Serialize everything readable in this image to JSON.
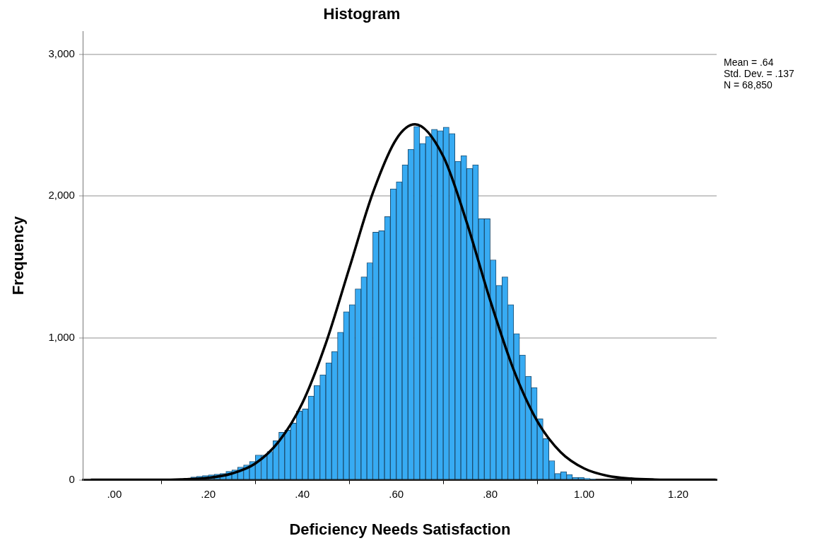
{
  "chart_data": {
    "type": "histogram",
    "title": "Histogram",
    "xlabel": "Deficiency Needs Satisfaction",
    "ylabel": "Frequency",
    "bins": [
      0.1625,
      0.175,
      0.1875,
      0.2,
      0.2125,
      0.225,
      0.2375,
      0.25,
      0.2625,
      0.275,
      0.2875,
      0.3,
      0.3125,
      0.325,
      0.3375,
      0.35,
      0.3625,
      0.375,
      0.3875,
      0.4,
      0.4125,
      0.425,
      0.4375,
      0.45,
      0.4625,
      0.475,
      0.4875,
      0.5,
      0.5125,
      0.525,
      0.5375,
      0.55,
      0.5625,
      0.575,
      0.5875,
      0.6,
      0.6125,
      0.625,
      0.6375,
      0.65,
      0.6625,
      0.675,
      0.6875,
      0.7,
      0.7125,
      0.725,
      0.7375,
      0.75,
      0.7625,
      0.775,
      0.7875,
      0.8,
      0.8125,
      0.825,
      0.8375,
      0.85,
      0.8625,
      0.875,
      0.8875,
      0.9,
      0.9125,
      0.925,
      0.9375,
      0.95,
      0.9625,
      0.975,
      0.9875,
      1.0,
      1.0125,
      1.025
    ],
    "values": [
      20,
      25,
      30,
      35,
      40,
      45,
      60,
      70,
      90,
      105,
      130,
      175,
      175,
      200,
      275,
      335,
      350,
      400,
      485,
      500,
      590,
      665,
      740,
      825,
      905,
      1040,
      1185,
      1235,
      1345,
      1430,
      1530,
      1745,
      1755,
      1855,
      2050,
      2100,
      2220,
      2330,
      2490,
      2370,
      2420,
      2470,
      2460,
      2485,
      2440,
      2245,
      2285,
      2195,
      2220,
      1840,
      1840,
      1550,
      1370,
      1430,
      1235,
      1030,
      880,
      730,
      650,
      430,
      290,
      135,
      45,
      58,
      37,
      18,
      18,
      10,
      5
    ],
    "color": "#37abf3",
    "series": [
      {
        "type": "line",
        "color": "#000000",
        "x": [
          -0.05,
          0.1,
          0.15,
          0.2,
          0.25,
          0.3,
          0.35,
          0.4,
          0.45,
          0.5,
          0.55,
          0.6,
          0.64,
          0.7,
          0.75,
          0.8,
          0.85,
          0.9,
          0.95,
          1.0,
          1.05,
          1.1,
          1.15,
          1.2,
          1.28
        ],
        "values": [
          0,
          0,
          4,
          14,
          44,
          115,
          270,
          540,
          960,
          1490,
          2020,
          2400,
          2505,
          2280,
          1815,
          1265,
          775,
          415,
          195,
          80,
          28,
          9,
          2,
          0,
          0
        ]
      }
    ],
    "xlim": [
      -0.066,
      1.282
    ],
    "xticks": [
      {
        "value": 0,
        "label": ".00"
      },
      {
        "value": 0.2,
        "label": ".20"
      },
      {
        "value": 0.4,
        "label": ".40"
      },
      {
        "value": 0.6,
        "label": ".60"
      },
      {
        "value": 0.8,
        "label": ".80"
      },
      {
        "value": 1.0,
        "label": "1.00"
      },
      {
        "value": 1.2,
        "label": "1.20"
      }
    ],
    "ylim": [
      0,
      3160
    ],
    "yticks": [
      0,
      {
        "value": 1000,
        "label": "1,000"
      },
      {
        "value": 2000,
        "label": "2,000"
      },
      {
        "value": 3000,
        "label": "3,000"
      }
    ],
    "grid": "y",
    "annotations": [
      "Mean = .64",
      "Std. Dev. = .137",
      "N = 68,850"
    ]
  }
}
